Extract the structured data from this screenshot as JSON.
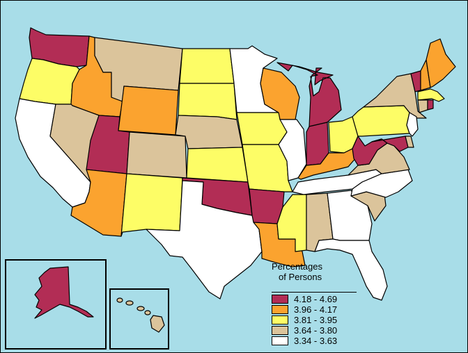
{
  "legend": {
    "title_line1": "Percentages",
    "title_line2": "of Persons",
    "items": [
      {
        "label": "4.18 - 4.69",
        "color": "#b22d55"
      },
      {
        "label": "3.96 - 4.17",
        "color": "#fba32f"
      },
      {
        "label": "3.81 - 3.95",
        "color": "#fdfd66"
      },
      {
        "label": "3.64 - 3.80",
        "color": "#dbc49b"
      },
      {
        "label": "3.34 - 3.63",
        "color": "#ffffff"
      }
    ]
  },
  "colors": {
    "water": "#a8dde8",
    "class1": "#b22d55",
    "class2": "#fba32f",
    "class3": "#fdfd66",
    "class4": "#dbc49b",
    "class5": "#ffffff"
  },
  "states": [
    {
      "id": "WA",
      "class": 1
    },
    {
      "id": "OR",
      "class": 3
    },
    {
      "id": "CA",
      "class": 5
    },
    {
      "id": "ID",
      "class": 2
    },
    {
      "id": "NV",
      "class": 4
    },
    {
      "id": "UT",
      "class": 1
    },
    {
      "id": "AZ",
      "class": 2
    },
    {
      "id": "MT",
      "class": 4
    },
    {
      "id": "WY",
      "class": 2
    },
    {
      "id": "CO",
      "class": 4
    },
    {
      "id": "NM",
      "class": 3
    },
    {
      "id": "ND",
      "class": 3
    },
    {
      "id": "SD",
      "class": 3
    },
    {
      "id": "NE",
      "class": 4
    },
    {
      "id": "KS",
      "class": 3
    },
    {
      "id": "OK",
      "class": 1
    },
    {
      "id": "TX",
      "class": 5
    },
    {
      "id": "MN",
      "class": 5
    },
    {
      "id": "IA",
      "class": 3
    },
    {
      "id": "MO",
      "class": 3
    },
    {
      "id": "AR",
      "class": 1
    },
    {
      "id": "LA",
      "class": 2
    },
    {
      "id": "WI",
      "class": 2
    },
    {
      "id": "IL",
      "class": 5
    },
    {
      "id": "MI",
      "class": 1
    },
    {
      "id": "IN",
      "class": 1
    },
    {
      "id": "OH",
      "class": 3
    },
    {
      "id": "KY",
      "class": 2
    },
    {
      "id": "TN",
      "class": 5
    },
    {
      "id": "MS",
      "class": 3
    },
    {
      "id": "AL",
      "class": 4
    },
    {
      "id": "GA",
      "class": 5
    },
    {
      "id": "FL",
      "class": 5
    },
    {
      "id": "SC",
      "class": 4
    },
    {
      "id": "NC",
      "class": 5
    },
    {
      "id": "VA",
      "class": 4
    },
    {
      "id": "WV",
      "class": 1
    },
    {
      "id": "PA",
      "class": 3
    },
    {
      "id": "NY",
      "class": 4
    },
    {
      "id": "NJ",
      "class": 5
    },
    {
      "id": "DE",
      "class": 4
    },
    {
      "id": "MD",
      "class": 1
    },
    {
      "id": "VT",
      "class": 1
    },
    {
      "id": "NH",
      "class": 2
    },
    {
      "id": "ME",
      "class": 2
    },
    {
      "id": "MA",
      "class": 3
    },
    {
      "id": "CT",
      "class": 4
    },
    {
      "id": "RI",
      "class": 1
    },
    {
      "id": "AK",
      "class": 1
    },
    {
      "id": "HI",
      "class": 4
    }
  ]
}
